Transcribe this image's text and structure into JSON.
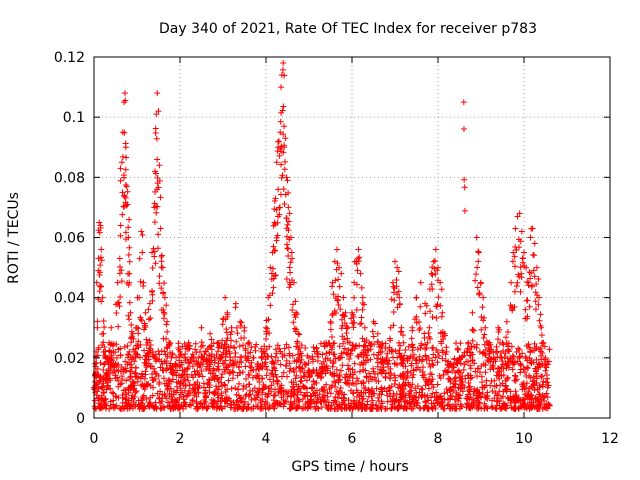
{
  "chart_data": {
    "type": "scatter",
    "title": "Day 340 of 2021, Rate Of TEC Index for receiver p783",
    "xlabel": "GPS time / hours",
    "ylabel": "ROTI / TECUs",
    "xlim": [
      0,
      12
    ],
    "ylim": [
      0,
      0.12
    ],
    "x_ticks": [
      0,
      2,
      4,
      6,
      8,
      10,
      12
    ],
    "y_ticks": [
      0,
      0.02,
      0.04,
      0.06,
      0.08,
      0.1,
      0.12
    ],
    "x_tick_labels": [
      "0",
      "2",
      "4",
      "6",
      "8",
      "10",
      "12"
    ],
    "y_tick_labels": [
      "0",
      "0.02",
      "0.04",
      "0.06",
      "0.08",
      "0.1",
      "0.12"
    ],
    "grid": true,
    "marker": "+",
    "color": "#ff0000",
    "series": [
      {
        "name": "ROTI",
        "points": [
          [
            0.02,
            0.012
          ],
          [
            0.05,
            0.02
          ],
          [
            0.08,
            0.03
          ],
          [
            0.1,
            0.049
          ],
          [
            0.12,
            0.065
          ],
          [
            0.15,
            0.064
          ],
          [
            0.17,
            0.056
          ],
          [
            0.2,
            0.04
          ],
          [
            0.22,
            0.028
          ],
          [
            0.25,
            0.018
          ],
          [
            0.3,
            0.015
          ],
          [
            0.35,
            0.025
          ],
          [
            0.4,
            0.03
          ],
          [
            0.45,
            0.022
          ],
          [
            0.5,
            0.018
          ],
          [
            0.55,
            0.045
          ],
          [
            0.6,
            0.053
          ],
          [
            0.62,
            0.064
          ],
          [
            0.65,
            0.085
          ],
          [
            0.67,
            0.095
          ],
          [
            0.7,
            0.105
          ],
          [
            0.72,
            0.108
          ],
          [
            0.74,
            0.09
          ],
          [
            0.76,
            0.077
          ],
          [
            0.78,
            0.071
          ],
          [
            0.8,
            0.06
          ],
          [
            0.82,
            0.045
          ],
          [
            0.85,
            0.035
          ],
          [
            0.9,
            0.028
          ],
          [
            0.95,
            0.022
          ],
          [
            1.0,
            0.03
          ],
          [
            1.05,
            0.04
          ],
          [
            1.1,
            0.062
          ],
          [
            1.15,
            0.045
          ],
          [
            1.2,
            0.035
          ],
          [
            1.25,
            0.025
          ],
          [
            1.3,
            0.038
          ],
          [
            1.35,
            0.055
          ],
          [
            1.4,
            0.07
          ],
          [
            1.42,
            0.082
          ],
          [
            1.45,
            0.101
          ],
          [
            1.47,
            0.108
          ],
          [
            1.5,
            0.102
          ],
          [
            1.52,
            0.084
          ],
          [
            1.55,
            0.063
          ],
          [
            1.58,
            0.054
          ],
          [
            1.6,
            0.05
          ],
          [
            1.65,
            0.04
          ],
          [
            1.7,
            0.032
          ],
          [
            1.75,
            0.025
          ],
          [
            1.8,
            0.02
          ],
          [
            1.9,
            0.018
          ],
          [
            2.0,
            0.022
          ],
          [
            2.1,
            0.016
          ],
          [
            2.2,
            0.025
          ],
          [
            2.3,
            0.02
          ],
          [
            2.4,
            0.018
          ],
          [
            2.5,
            0.03
          ],
          [
            2.6,
            0.022
          ],
          [
            2.7,
            0.028
          ],
          [
            2.8,
            0.02
          ],
          [
            2.9,
            0.025
          ],
          [
            3.0,
            0.033
          ],
          [
            3.05,
            0.04
          ],
          [
            3.1,
            0.035
          ],
          [
            3.2,
            0.03
          ],
          [
            3.3,
            0.038
          ],
          [
            3.4,
            0.032
          ],
          [
            3.5,
            0.03
          ],
          [
            3.6,
            0.025
          ],
          [
            3.7,
            0.02
          ],
          [
            3.8,
            0.018
          ],
          [
            3.9,
            0.022
          ],
          [
            4.0,
            0.03
          ],
          [
            4.05,
            0.04
          ],
          [
            4.1,
            0.05
          ],
          [
            4.15,
            0.055
          ],
          [
            4.2,
            0.065
          ],
          [
            4.22,
            0.073
          ],
          [
            4.25,
            0.085
          ],
          [
            4.28,
            0.09
          ],
          [
            4.3,
            0.092
          ],
          [
            4.33,
            0.095
          ],
          [
            4.35,
            0.11
          ],
          [
            4.37,
            0.114
          ],
          [
            4.4,
            0.118
          ],
          [
            4.42,
            0.097
          ],
          [
            4.45,
            0.093
          ],
          [
            4.48,
            0.08
          ],
          [
            4.5,
            0.079
          ],
          [
            4.52,
            0.07
          ],
          [
            4.55,
            0.068
          ],
          [
            4.58,
            0.06
          ],
          [
            4.6,
            0.055
          ],
          [
            4.65,
            0.045
          ],
          [
            4.7,
            0.035
          ],
          [
            4.75,
            0.028
          ],
          [
            4.8,
            0.022
          ],
          [
            4.9,
            0.018
          ],
          [
            5.0,
            0.02
          ],
          [
            5.1,
            0.016
          ],
          [
            5.2,
            0.022
          ],
          [
            5.3,
            0.018
          ],
          [
            5.4,
            0.025
          ],
          [
            5.5,
            0.032
          ],
          [
            5.55,
            0.045
          ],
          [
            5.6,
            0.052
          ],
          [
            5.65,
            0.056
          ],
          [
            5.7,
            0.05
          ],
          [
            5.75,
            0.048
          ],
          [
            5.8,
            0.04
          ],
          [
            5.85,
            0.035
          ],
          [
            5.9,
            0.03
          ],
          [
            5.95,
            0.025
          ],
          [
            6.0,
            0.035
          ],
          [
            6.05,
            0.045
          ],
          [
            6.1,
            0.052
          ],
          [
            6.15,
            0.056
          ],
          [
            6.2,
            0.048
          ],
          [
            6.25,
            0.04
          ],
          [
            6.3,
            0.03
          ],
          [
            6.4,
            0.025
          ],
          [
            6.5,
            0.032
          ],
          [
            6.6,
            0.028
          ],
          [
            6.7,
            0.022
          ],
          [
            6.8,
            0.02
          ],
          [
            6.9,
            0.03
          ],
          [
            6.95,
            0.045
          ],
          [
            7.0,
            0.052
          ],
          [
            7.05,
            0.05
          ],
          [
            7.1,
            0.04
          ],
          [
            7.15,
            0.03
          ],
          [
            7.2,
            0.025
          ],
          [
            7.3,
            0.02
          ],
          [
            7.4,
            0.03
          ],
          [
            7.5,
            0.04
          ],
          [
            7.6,
            0.045
          ],
          [
            7.7,
            0.038
          ],
          [
            7.8,
            0.03
          ],
          [
            7.85,
            0.048
          ],
          [
            7.9,
            0.052
          ],
          [
            7.95,
            0.056
          ],
          [
            8.0,
            0.05
          ],
          [
            8.05,
            0.045
          ],
          [
            8.1,
            0.035
          ],
          [
            8.15,
            0.028
          ],
          [
            8.2,
            0.022
          ],
          [
            8.3,
            0.018
          ],
          [
            8.4,
            0.015
          ],
          [
            8.5,
            0.02
          ],
          [
            8.6,
            0.105
          ],
          [
            8.7,
            0.025
          ],
          [
            8.8,
            0.035
          ],
          [
            8.9,
            0.06
          ],
          [
            8.95,
            0.055
          ],
          [
            9.0,
            0.045
          ],
          [
            9.05,
            0.04
          ],
          [
            9.1,
            0.03
          ],
          [
            9.2,
            0.025
          ],
          [
            9.3,
            0.02
          ],
          [
            9.4,
            0.03
          ],
          [
            9.5,
            0.025
          ],
          [
            9.6,
            0.032
          ],
          [
            9.7,
            0.045
          ],
          [
            9.75,
            0.055
          ],
          [
            9.8,
            0.063
          ],
          [
            9.85,
            0.067
          ],
          [
            9.9,
            0.068
          ],
          [
            9.95,
            0.062
          ],
          [
            10.0,
            0.055
          ],
          [
            10.05,
            0.05
          ],
          [
            10.1,
            0.045
          ],
          [
            10.15,
            0.06
          ],
          [
            10.2,
            0.063
          ],
          [
            10.25,
            0.058
          ],
          [
            10.3,
            0.05
          ],
          [
            10.35,
            0.04
          ],
          [
            10.4,
            0.03
          ],
          [
            10.45,
            0.025
          ],
          [
            10.5,
            0.02
          ]
        ]
      }
    ],
    "noise_band": {
      "x_range": [
        0,
        10.6
      ],
      "y_range": [
        0.003,
        0.025
      ]
    }
  }
}
